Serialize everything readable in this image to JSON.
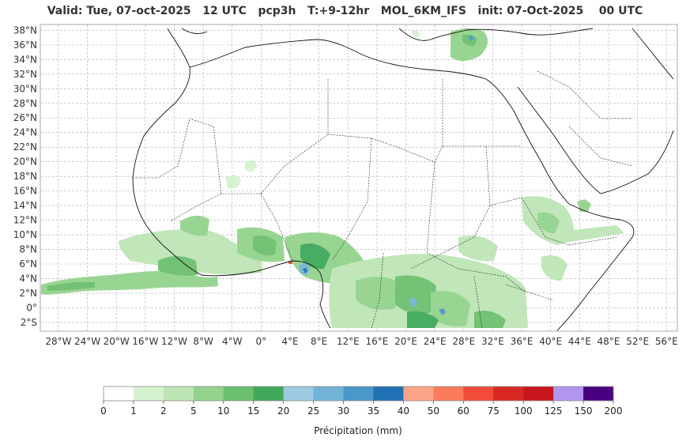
{
  "title": "Valid: Tue, 07-oct-2025   12 UTC   pcp3h   T:+9-12hr   MOL_6KM_IFS   init: 07-Oct-2025    00 UTC",
  "map": {
    "lat_labels": [
      "38°N",
      "36°N",
      "34°N",
      "32°N",
      "30°N",
      "28°N",
      "26°N",
      "24°N",
      "22°N",
      "20°N",
      "18°N",
      "16°N",
      "14°N",
      "12°N",
      "10°N",
      "8°N",
      "6°N",
      "4°N",
      "2°N",
      "0°",
      "2°S"
    ],
    "lat_values": [
      38,
      36,
      34,
      32,
      30,
      28,
      26,
      24,
      22,
      20,
      18,
      16,
      14,
      12,
      10,
      8,
      6,
      4,
      2,
      0,
      -2
    ],
    "lon_labels": [
      "28°W",
      "24°W",
      "20°W",
      "16°W",
      "12°W",
      "8°W",
      "4°W",
      "0°",
      "4°E",
      "8°E",
      "12°E",
      "16°E",
      "20°E",
      "24°E",
      "28°E",
      "32°E",
      "36°E",
      "40°E",
      "44°E",
      "48°E",
      "52°E",
      "56°E"
    ],
    "lon_values": [
      -28,
      -24,
      -20,
      -16,
      -12,
      -8,
      -4,
      0,
      4,
      8,
      12,
      16,
      20,
      24,
      28,
      32,
      36,
      40,
      44,
      48,
      52,
      56
    ],
    "lon_min": -30.5,
    "lon_max": 57.5,
    "lat_min": -3.2,
    "lat_max": 38.8
  },
  "colorbar": {
    "title": "Précipitation (mm)",
    "ticks": [
      "0",
      "1",
      "2",
      "5",
      "10",
      "15",
      "20",
      "25",
      "30",
      "35",
      "40",
      "50",
      "60",
      "75",
      "100",
      "125",
      "150",
      "200"
    ],
    "colors": [
      "#ffffff",
      "#d5f2cf",
      "#bde5b6",
      "#94d38d",
      "#6cbf6e",
      "#3fa85b",
      "#9ecae1",
      "#74b3d8",
      "#4a97c9",
      "#2070b4",
      "#fca487",
      "#fb7c5c",
      "#f14c3a",
      "#d92723",
      "#c8171c",
      "#b196ef",
      "#4a0080"
    ]
  }
}
